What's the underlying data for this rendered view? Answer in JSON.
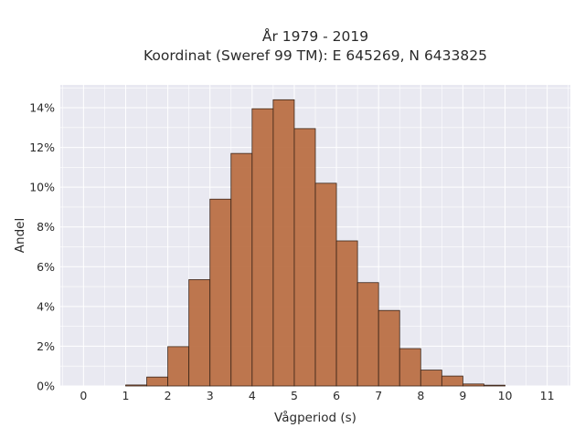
{
  "chart_data": {
    "type": "bar",
    "title_line1": "År 1979 - 2019",
    "title_line2": "Koordinat (Sweref 99 TM): E 645269, N 6433825",
    "xlabel": "Vågperiod (s)",
    "ylabel": "Andel",
    "xlim": [
      -0.55,
      11.55
    ],
    "ylim": [
      0,
      0.1515
    ],
    "x_ticks": [
      0,
      1,
      2,
      3,
      4,
      5,
      6,
      7,
      8,
      9,
      10,
      11
    ],
    "y_ticks": [
      0,
      0.02,
      0.04,
      0.06,
      0.08,
      0.1,
      0.12,
      0.14
    ],
    "y_tick_labels": [
      "0%",
      "2%",
      "4%",
      "6%",
      "8%",
      "10%",
      "12%",
      "14%"
    ],
    "bin_width": 0.5,
    "bins_start": [
      1.0,
      1.5,
      2.0,
      2.5,
      3.0,
      3.5,
      4.0,
      4.5,
      5.0,
      5.5,
      6.0,
      6.5,
      7.0,
      7.5,
      8.0,
      8.5,
      9.0,
      9.5
    ],
    "values": [
      0.0005,
      0.0045,
      0.0198,
      0.0535,
      0.094,
      0.117,
      0.1395,
      0.144,
      0.1295,
      0.102,
      0.073,
      0.052,
      0.038,
      0.0188,
      0.008,
      0.005,
      0.001,
      0.0004
    ],
    "grid": true,
    "bar_color": "#b86b40",
    "bar_edge_color": "#3a2418",
    "plot_bg": "#e9e9f1",
    "grid_color": "#ffffff"
  }
}
